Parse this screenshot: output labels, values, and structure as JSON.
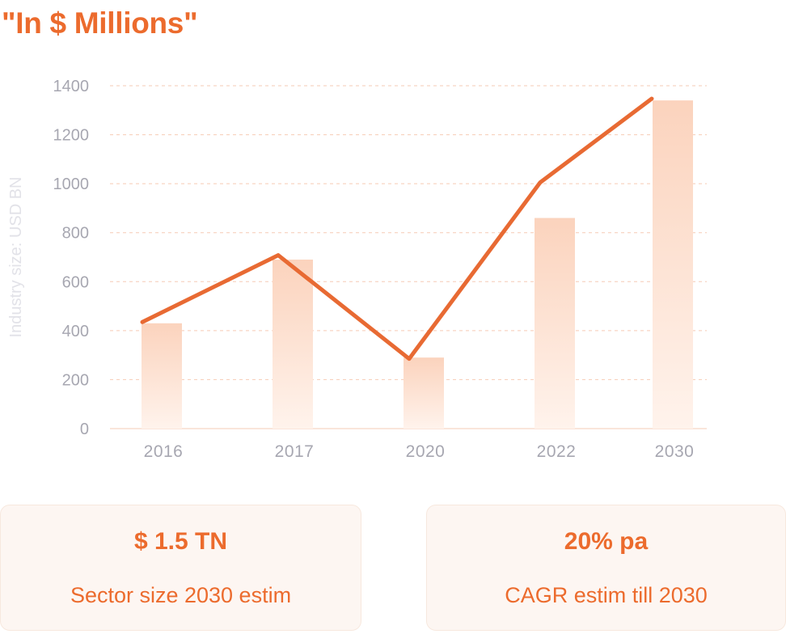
{
  "title": "\"In $ Millions\"",
  "colors": {
    "accent": "#ec6b2d",
    "line": "#e86a33",
    "bar_top": "#fbd3bd",
    "bar_bottom": "#fff3ec",
    "grid": "#f6cbb5",
    "tick_text": "#a7a7b1",
    "axis_title": "#e2e2e8"
  },
  "chart_data": {
    "type": "bar+line",
    "ylabel": "Industry size: USD BN",
    "xlabel": "",
    "ylim": [
      0,
      1400
    ],
    "yticks": [
      0,
      200,
      400,
      600,
      800,
      1000,
      1200,
      1400
    ],
    "categories": [
      "2016",
      "2017",
      "2020",
      "2022",
      "2030"
    ],
    "series": [
      {
        "type": "bar",
        "values": [
          430,
          690,
          290,
          860,
          1340
        ]
      },
      {
        "type": "line",
        "values": [
          435,
          708,
          285,
          1005,
          1347
        ]
      }
    ],
    "grid": true,
    "legend": "none"
  },
  "stats": [
    {
      "value": "$ 1.5 TN",
      "label": "Sector size 2030 estim"
    },
    {
      "value": "20% pa",
      "label": "CAGR estim till 2030"
    }
  ]
}
